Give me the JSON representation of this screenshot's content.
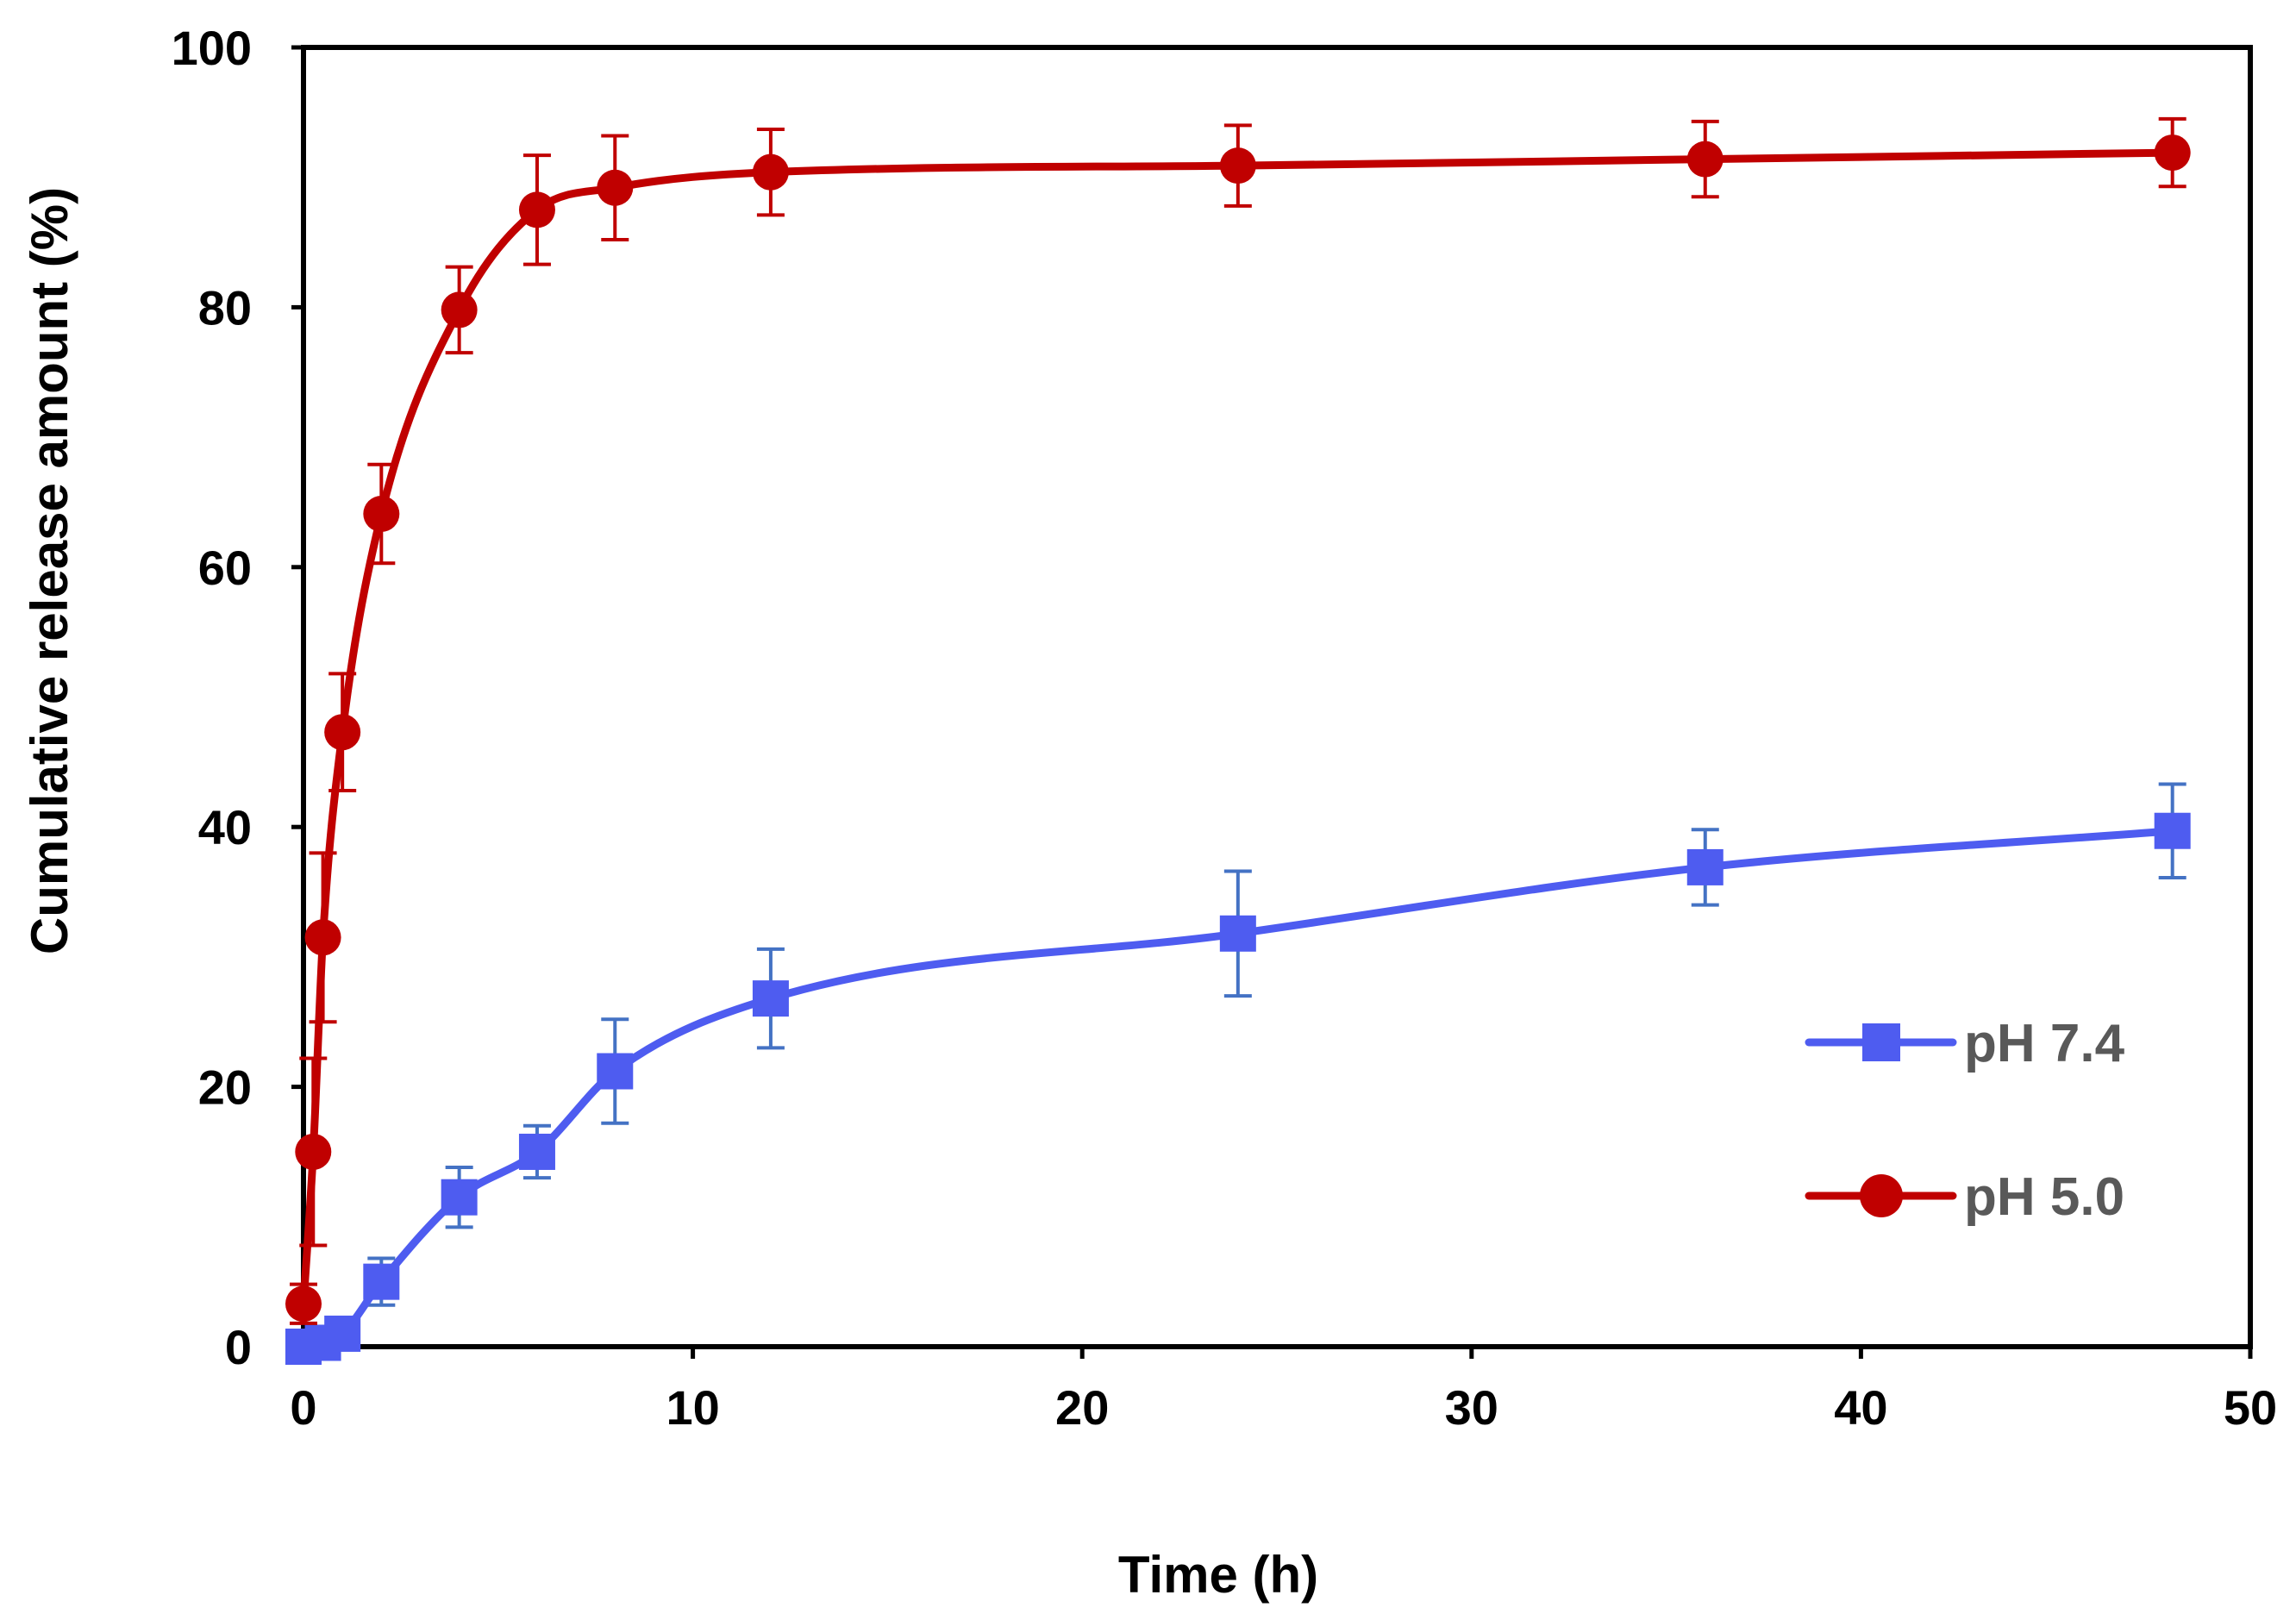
{
  "chart_data": {
    "type": "line",
    "title": "",
    "xlabel": "Time (h)",
    "ylabel": "Cumulative release amount (%)",
    "xlim": [
      0,
      50
    ],
    "ylim": [
      0,
      100
    ],
    "xticks": [
      "0",
      "10",
      "20",
      "30",
      "40",
      "50"
    ],
    "yticks": [
      "0",
      "20",
      "40",
      "60",
      "80",
      "100"
    ],
    "grid": false,
    "legend_position": "right",
    "series": [
      {
        "name": "pH 7.4",
        "color": "#4e5cf0",
        "error_color": "#4472c4",
        "marker": "square",
        "x": [
          0,
          0.5,
          1,
          2,
          4,
          6,
          8,
          12,
          24,
          36,
          48
        ],
        "y": [
          0,
          0.3,
          1,
          5,
          11.5,
          15,
          21.2,
          26.8,
          31.8,
          36.9,
          39.7
        ],
        "error": [
          0.5,
          0.5,
          0.7,
          1.8,
          2.3,
          2.0,
          4.0,
          3.8,
          4.8,
          2.9,
          3.6
        ]
      },
      {
        "name": "pH 5.0",
        "color": "#c00000",
        "error_color": "#c00000",
        "marker": "circle",
        "x": [
          0,
          0.25,
          0.5,
          1,
          2,
          4,
          6,
          8,
          12,
          24,
          36,
          48
        ],
        "y": [
          3.3,
          15,
          31.5,
          47.3,
          64.1,
          79.8,
          87.5,
          89.2,
          90.4,
          90.9,
          91.4,
          91.9
        ],
        "error": [
          1.5,
          7.2,
          6.5,
          4.5,
          3.8,
          3.3,
          4.2,
          4.0,
          3.3,
          3.1,
          2.9,
          2.6
        ]
      }
    ]
  }
}
